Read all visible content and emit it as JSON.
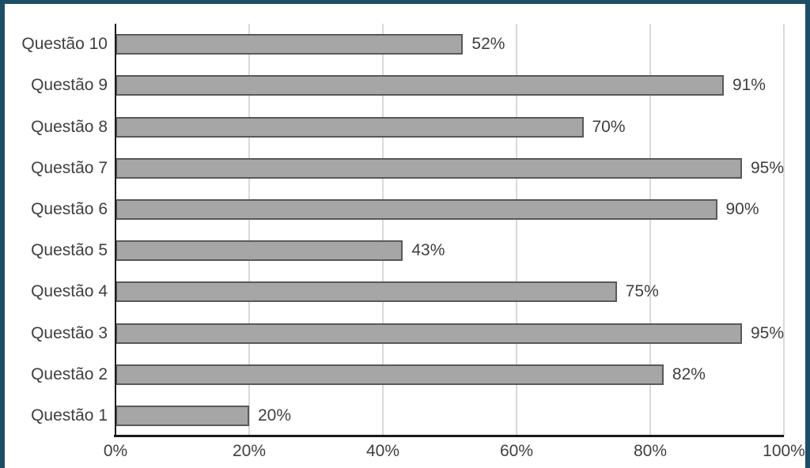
{
  "frame": {
    "border_color": "#1d4e68",
    "background": "#ffffff"
  },
  "chart_data": {
    "type": "bar",
    "orientation": "horizontal",
    "title": "",
    "xlabel": "",
    "ylabel": "",
    "categories": [
      "Questão 10",
      "Questão 9",
      "Questão 8",
      "Questão 7",
      "Questão 6",
      "Questão 5",
      "Questão 4",
      "Questão 3",
      "Questão 2",
      "Questão 1"
    ],
    "values": [
      52,
      91,
      70,
      95,
      90,
      43,
      75,
      95,
      82,
      20
    ],
    "value_labels": [
      "52%",
      "91%",
      "70%",
      "95%",
      "90%",
      "43%",
      "75%",
      "95%",
      "82%",
      "20%"
    ],
    "xlim": [
      0,
      100
    ],
    "x_tick_values": [
      0,
      20,
      40,
      60,
      80,
      100
    ],
    "x_tick_labels": [
      "0%",
      "20%",
      "40%",
      "60%",
      "80%",
      "100%"
    ],
    "grid": true,
    "legend": false,
    "colors": {
      "bar_fill": "#a6a6a6",
      "bar_border": "#595959",
      "gridline": "#d9d9d9",
      "axis_line": "#1a1a1a",
      "text": "#3f3f3f"
    }
  }
}
